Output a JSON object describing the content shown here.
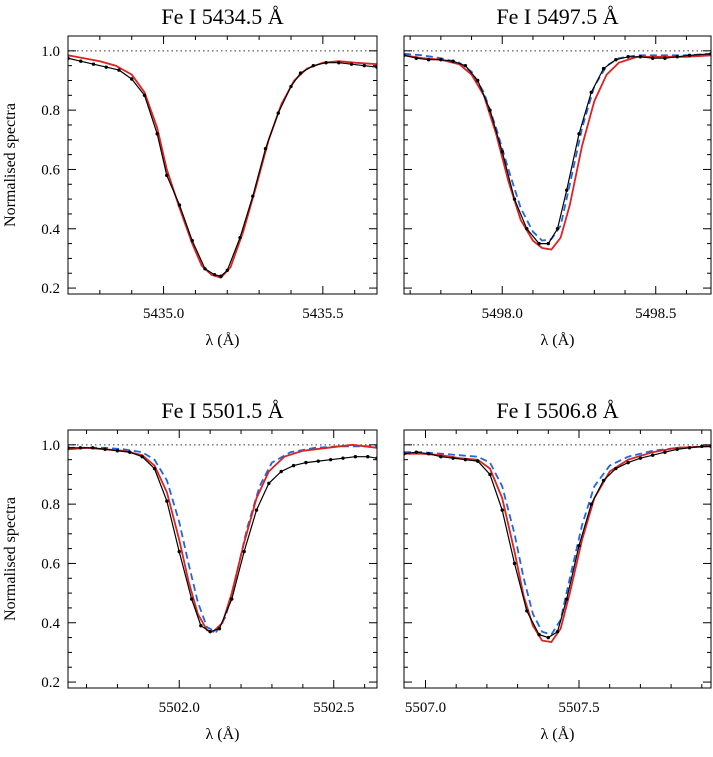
{
  "chart_data": [
    {
      "type": "line",
      "title": "Fe I  5434.5 Å",
      "xlabel": "λ (Å)",
      "ylabel": "Normalised spectra",
      "xlim": [
        5434.7,
        5435.67
      ],
      "ylim": [
        0.18,
        1.05
      ],
      "xticks": [
        5435.0,
        5435.5
      ],
      "xtick_labels": [
        "5435.0",
        "5435.5"
      ],
      "yticks": [
        0.2,
        0.4,
        0.6,
        0.8,
        1.0
      ],
      "ytick_labels": [
        "0.2",
        "0.4",
        "0.6",
        "0.8",
        "1.0"
      ],
      "continuum": 1.0,
      "series": [
        {
          "role": "observed",
          "color": "#000000",
          "markers": true,
          "x": [
            5434.7,
            5434.74,
            5434.78,
            5434.82,
            5434.86,
            5434.9,
            5434.94,
            5434.98,
            5435.01,
            5435.05,
            5435.09,
            5435.13,
            5435.16,
            5435.18,
            5435.2,
            5435.24,
            5435.28,
            5435.32,
            5435.36,
            5435.4,
            5435.43,
            5435.47,
            5435.51,
            5435.55,
            5435.59,
            5435.63,
            5435.67
          ],
          "y": [
            0.975,
            0.965,
            0.955,
            0.945,
            0.935,
            0.905,
            0.85,
            0.72,
            0.58,
            0.48,
            0.36,
            0.265,
            0.245,
            0.24,
            0.26,
            0.37,
            0.51,
            0.67,
            0.79,
            0.88,
            0.925,
            0.95,
            0.96,
            0.96,
            0.955,
            0.95,
            0.945
          ]
        },
        {
          "role": "model",
          "color": "#dd2222",
          "dashed": false,
          "x": [
            5434.7,
            5434.75,
            5434.8,
            5434.85,
            5434.9,
            5434.94,
            5434.98,
            5435.01,
            5435.05,
            5435.09,
            5435.12,
            5435.15,
            5435.18,
            5435.21,
            5435.25,
            5435.29,
            5435.33,
            5435.37,
            5435.41,
            5435.45,
            5435.5,
            5435.55,
            5435.6,
            5435.67
          ],
          "y": [
            0.985,
            0.975,
            0.965,
            0.95,
            0.92,
            0.86,
            0.74,
            0.6,
            0.47,
            0.35,
            0.275,
            0.245,
            0.235,
            0.27,
            0.39,
            0.54,
            0.7,
            0.82,
            0.9,
            0.94,
            0.96,
            0.965,
            0.96,
            0.955
          ]
        }
      ]
    },
    {
      "type": "line",
      "title": "Fe I  5497.5 Å",
      "xlabel": "λ (Å)",
      "ylabel": "",
      "xlim": [
        5497.68,
        5498.68
      ],
      "ylim": [
        0.18,
        1.05
      ],
      "xticks": [
        5498.0,
        5498.5
      ],
      "xtick_labels": [
        "5498.0",
        "5498.5"
      ],
      "yticks": [
        0.2,
        0.4,
        0.6,
        0.8,
        1.0
      ],
      "ytick_labels": [
        "",
        "",
        "",
        "",
        ""
      ],
      "continuum": 1.0,
      "series": [
        {
          "role": "observed",
          "color": "#000000",
          "markers": true,
          "x": [
            5497.68,
            5497.72,
            5497.76,
            5497.8,
            5497.84,
            5497.88,
            5497.92,
            5497.96,
            5498.0,
            5498.04,
            5498.08,
            5498.12,
            5498.15,
            5498.18,
            5498.21,
            5498.25,
            5498.29,
            5498.33,
            5498.37,
            5498.41,
            5498.45,
            5498.49,
            5498.53,
            5498.57,
            5498.61,
            5498.68
          ],
          "y": [
            0.985,
            0.975,
            0.97,
            0.97,
            0.965,
            0.95,
            0.9,
            0.8,
            0.66,
            0.5,
            0.4,
            0.35,
            0.35,
            0.4,
            0.53,
            0.72,
            0.86,
            0.94,
            0.97,
            0.98,
            0.98,
            0.975,
            0.975,
            0.98,
            0.985,
            0.99
          ]
        },
        {
          "role": "model-dashed",
          "color": "#2266dd",
          "dashed": true,
          "x": [
            5497.68,
            5497.74,
            5497.8,
            5497.86,
            5497.9,
            5497.94,
            5497.98,
            5498.02,
            5498.06,
            5498.1,
            5498.13,
            5498.16,
            5498.19,
            5498.22,
            5498.26,
            5498.3,
            5498.34,
            5498.38,
            5498.44,
            5498.52,
            5498.6,
            5498.68
          ],
          "y": [
            0.99,
            0.985,
            0.975,
            0.96,
            0.93,
            0.86,
            0.74,
            0.6,
            0.47,
            0.39,
            0.36,
            0.365,
            0.41,
            0.55,
            0.74,
            0.88,
            0.95,
            0.975,
            0.985,
            0.985,
            0.985,
            0.99
          ]
        },
        {
          "role": "model",
          "color": "#dd2222",
          "dashed": false,
          "x": [
            5497.68,
            5497.74,
            5497.8,
            5497.86,
            5497.9,
            5497.94,
            5497.98,
            5498.02,
            5498.06,
            5498.1,
            5498.13,
            5498.16,
            5498.19,
            5498.22,
            5498.26,
            5498.3,
            5498.34,
            5498.38,
            5498.44,
            5498.52,
            5498.6,
            5498.68
          ],
          "y": [
            0.985,
            0.975,
            0.97,
            0.955,
            0.92,
            0.85,
            0.72,
            0.56,
            0.43,
            0.36,
            0.335,
            0.33,
            0.37,
            0.48,
            0.68,
            0.83,
            0.92,
            0.96,
            0.98,
            0.98,
            0.98,
            0.985
          ]
        }
      ]
    },
    {
      "type": "line",
      "title": "Fe I  5501.5 Å",
      "xlabel": "λ (Å)",
      "ylabel": "Normalised spectra",
      "xlim": [
        5501.64,
        5502.64
      ],
      "ylim": [
        0.18,
        1.05
      ],
      "xticks": [
        5502.0,
        5502.5
      ],
      "xtick_labels": [
        "5502.0",
        "5502.5"
      ],
      "yticks": [
        0.2,
        0.4,
        0.6,
        0.8,
        1.0
      ],
      "ytick_labels": [
        "0.2",
        "0.4",
        "0.6",
        "0.8",
        "1.0"
      ],
      "continuum": 1.0,
      "series": [
        {
          "role": "observed",
          "color": "#000000",
          "markers": true,
          "x": [
            5501.64,
            5501.68,
            5501.72,
            5501.76,
            5501.8,
            5501.84,
            5501.88,
            5501.92,
            5501.96,
            5502.0,
            5502.04,
            5502.07,
            5502.1,
            5502.13,
            5502.17,
            5502.21,
            5502.25,
            5502.29,
            5502.33,
            5502.37,
            5502.41,
            5502.45,
            5502.49,
            5502.53,
            5502.57,
            5502.61,
            5502.64
          ],
          "y": [
            0.99,
            0.99,
            0.99,
            0.985,
            0.98,
            0.975,
            0.96,
            0.92,
            0.81,
            0.64,
            0.48,
            0.39,
            0.37,
            0.38,
            0.48,
            0.64,
            0.78,
            0.87,
            0.91,
            0.93,
            0.94,
            0.945,
            0.95,
            0.955,
            0.96,
            0.96,
            0.955
          ]
        },
        {
          "role": "model-dashed",
          "color": "#2266dd",
          "dashed": true,
          "x": [
            5501.64,
            5501.7,
            5501.76,
            5501.82,
            5501.88,
            5501.92,
            5501.96,
            5502.0,
            5502.03,
            5502.06,
            5502.09,
            5502.12,
            5502.15,
            5502.18,
            5502.22,
            5502.26,
            5502.3,
            5502.36,
            5502.44,
            5502.52,
            5502.6,
            5502.64
          ],
          "y": [
            0.99,
            0.99,
            0.99,
            0.985,
            0.975,
            0.95,
            0.88,
            0.74,
            0.6,
            0.47,
            0.385,
            0.37,
            0.42,
            0.54,
            0.72,
            0.86,
            0.94,
            0.975,
            0.99,
            0.995,
            0.995,
            0.995
          ]
        },
        {
          "role": "model",
          "color": "#dd2222",
          "dashed": false,
          "x": [
            5501.64,
            5501.7,
            5501.76,
            5501.82,
            5501.88,
            5501.92,
            5501.96,
            5502.0,
            5502.03,
            5502.06,
            5502.09,
            5502.11,
            5502.14,
            5502.17,
            5502.21,
            5502.25,
            5502.29,
            5502.34,
            5502.4,
            5502.48,
            5502.56,
            5502.64
          ],
          "y": [
            0.985,
            0.99,
            0.985,
            0.98,
            0.965,
            0.93,
            0.84,
            0.68,
            0.54,
            0.43,
            0.375,
            0.37,
            0.4,
            0.5,
            0.67,
            0.82,
            0.91,
            0.96,
            0.98,
            0.99,
            1.0,
            0.99
          ]
        }
      ]
    },
    {
      "type": "line",
      "title": "Fe I  5506.8 Å",
      "xlabel": "λ (Å)",
      "ylabel": "",
      "xlim": [
        5506.93,
        5507.93
      ],
      "ylim": [
        0.18,
        1.05
      ],
      "xticks": [
        5507.0,
        5507.5
      ],
      "xtick_labels": [
        "5507.0",
        "5507.5"
      ],
      "yticks": [
        0.2,
        0.4,
        0.6,
        0.8,
        1.0
      ],
      "ytick_labels": [
        "",
        "",
        "",
        "",
        ""
      ],
      "continuum": 1.0,
      "series": [
        {
          "role": "observed",
          "color": "#000000",
          "markers": true,
          "x": [
            5506.93,
            5506.97,
            5507.01,
            5507.05,
            5507.09,
            5507.13,
            5507.17,
            5507.21,
            5507.25,
            5507.29,
            5507.33,
            5507.37,
            5507.4,
            5507.43,
            5507.46,
            5507.5,
            5507.54,
            5507.58,
            5507.62,
            5507.66,
            5507.7,
            5507.74,
            5507.78,
            5507.82,
            5507.86,
            5507.9,
            5507.93
          ],
          "y": [
            0.97,
            0.975,
            0.97,
            0.96,
            0.955,
            0.95,
            0.945,
            0.9,
            0.78,
            0.6,
            0.44,
            0.36,
            0.35,
            0.37,
            0.48,
            0.66,
            0.8,
            0.88,
            0.92,
            0.94,
            0.955,
            0.965,
            0.975,
            0.985,
            0.99,
            0.995,
            0.995
          ]
        },
        {
          "role": "model-dashed",
          "color": "#2266dd",
          "dashed": true,
          "x": [
            5506.93,
            5506.99,
            5507.05,
            5507.11,
            5507.17,
            5507.21,
            5507.25,
            5507.29,
            5507.32,
            5507.35,
            5507.38,
            5507.41,
            5507.44,
            5507.47,
            5507.51,
            5507.55,
            5507.6,
            5507.66,
            5507.74,
            5507.82,
            5507.93
          ],
          "y": [
            0.975,
            0.975,
            0.97,
            0.965,
            0.96,
            0.94,
            0.86,
            0.7,
            0.55,
            0.43,
            0.37,
            0.36,
            0.41,
            0.55,
            0.73,
            0.86,
            0.93,
            0.96,
            0.98,
            0.99,
            0.995
          ]
        },
        {
          "role": "model",
          "color": "#dd2222",
          "dashed": false,
          "x": [
            5506.93,
            5506.99,
            5507.05,
            5507.11,
            5507.17,
            5507.21,
            5507.25,
            5507.29,
            5507.32,
            5507.35,
            5507.38,
            5507.41,
            5507.44,
            5507.47,
            5507.51,
            5507.55,
            5507.6,
            5507.66,
            5507.74,
            5507.82,
            5507.93
          ],
          "y": [
            0.97,
            0.97,
            0.965,
            0.955,
            0.95,
            0.92,
            0.82,
            0.64,
            0.49,
            0.39,
            0.34,
            0.335,
            0.38,
            0.5,
            0.68,
            0.82,
            0.91,
            0.95,
            0.975,
            0.99,
            0.995
          ]
        }
      ]
    }
  ]
}
